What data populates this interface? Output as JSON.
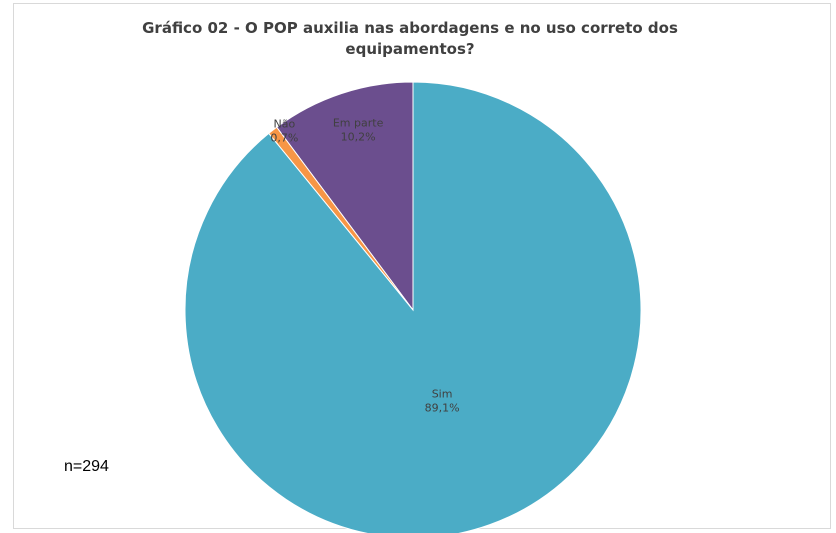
{
  "chart_data": {
    "type": "pie",
    "title": "Gráfico 02 - O POP auxilia nas abordagens e no uso correto dos equipamentos?",
    "categories": [
      "Em parte",
      "Não",
      "Sim"
    ],
    "values": [
      10.2,
      0.7,
      89.1
    ],
    "value_labels": [
      "10,2%",
      "0,7%",
      "89,1%"
    ],
    "colors": [
      "#6b4e8e",
      "#f79646",
      "#4bacc6"
    ],
    "legend": "none",
    "note": "n=294"
  }
}
